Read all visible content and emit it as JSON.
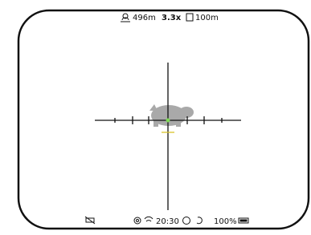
{
  "status_top": {
    "distance": "496m",
    "zoom": "3.3x",
    "range": "100m"
  },
  "status_bottom": {
    "time": "20:30",
    "battery": "100%"
  }
}
